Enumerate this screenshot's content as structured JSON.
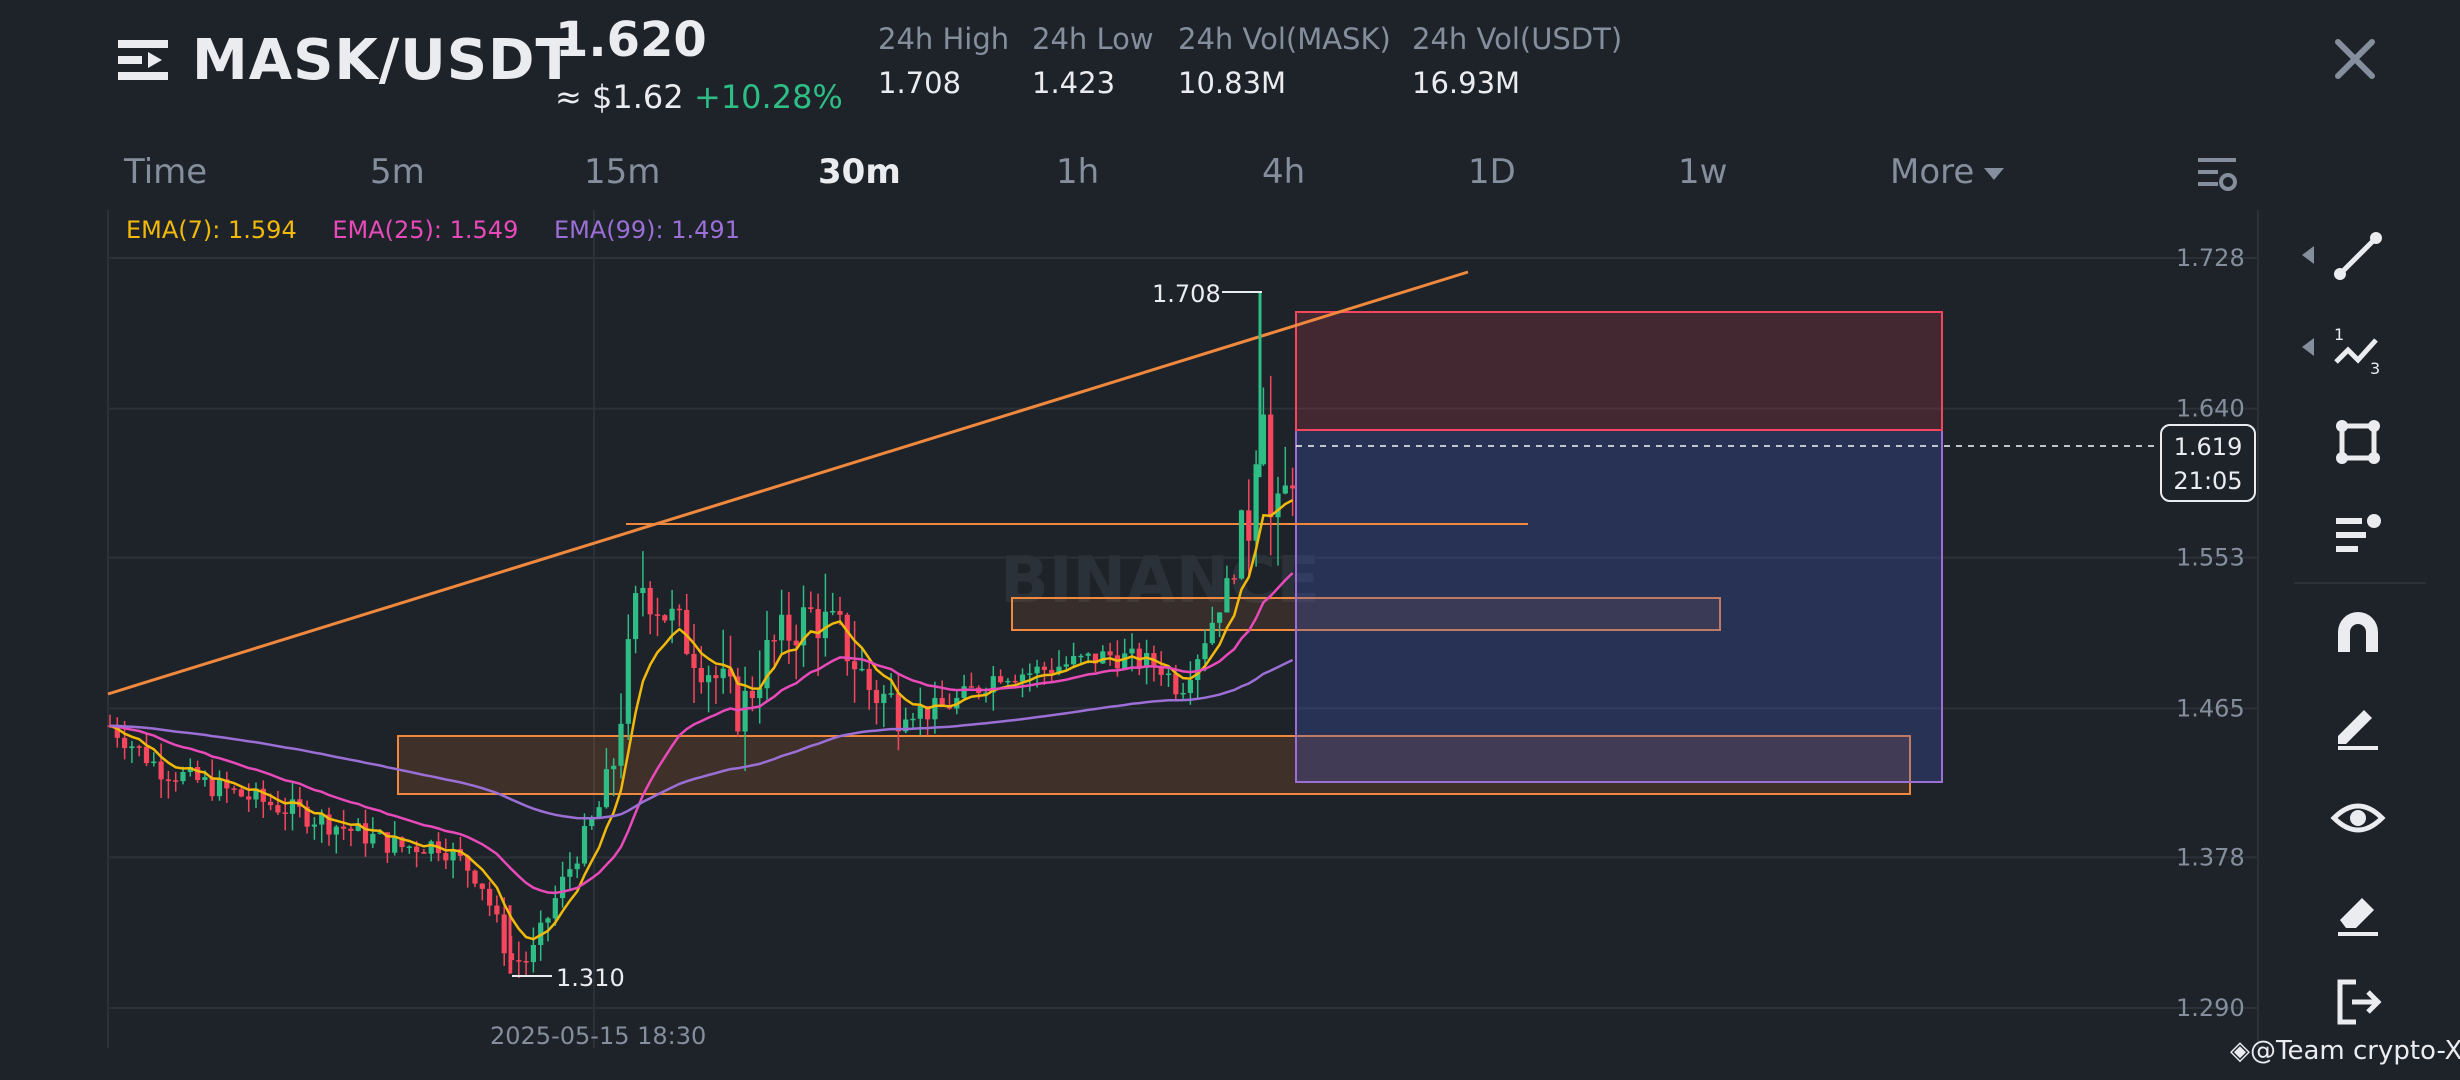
{
  "header": {
    "pair": "MASK/USDT",
    "price": "1.620",
    "price_usd": "≈ $1.62",
    "change": "+10.28%",
    "stats": [
      {
        "label": "24h High",
        "value": "1.708"
      },
      {
        "label": "24h Low",
        "value": "1.423"
      },
      {
        "label": "24h Vol(MASK)",
        "value": "10.83M"
      },
      {
        "label": "24h Vol(USDT)",
        "value": "16.93M"
      }
    ]
  },
  "tabs": [
    {
      "label": "Time",
      "active": false
    },
    {
      "label": "5m",
      "active": false
    },
    {
      "label": "15m",
      "active": false
    },
    {
      "label": "30m",
      "active": true
    },
    {
      "label": "1h",
      "active": false
    },
    {
      "label": "4h",
      "active": false
    },
    {
      "label": "1D",
      "active": false
    },
    {
      "label": "1w",
      "active": false
    },
    {
      "label": "More",
      "active": false
    }
  ],
  "ema": [
    {
      "label": "EMA(7): 1.594",
      "color": "#f0b90b"
    },
    {
      "label": "EMA(25): 1.549",
      "color": "#e84ab9"
    },
    {
      "label": "EMA(99): 1.491",
      "color": "#9b6fd6"
    }
  ],
  "chart_data": {
    "type": "candlestick",
    "y_ticks": [
      "1.728",
      "1.640",
      "1.553",
      "1.465",
      "1.378",
      "1.290"
    ],
    "ylim": [
      1.28,
      1.74
    ],
    "x_label": "2025-05-15 18:30",
    "high_marker": "1.708",
    "low_marker": "1.310",
    "last_price": "1.619",
    "countdown": "21:05",
    "colors": {
      "up": "#2ebd85",
      "down": "#f6465d"
    }
  },
  "toolbar": {
    "tools": [
      "trend-line-icon",
      "fibonacci-icon",
      "shape-icon",
      "indicator-icon",
      "magnet-icon",
      "pencil-icon",
      "eye-icon",
      "eraser-icon",
      "exit-icon"
    ]
  },
  "watermark": "@Team crypto-X",
  "chart_watermark": "BINANCE"
}
